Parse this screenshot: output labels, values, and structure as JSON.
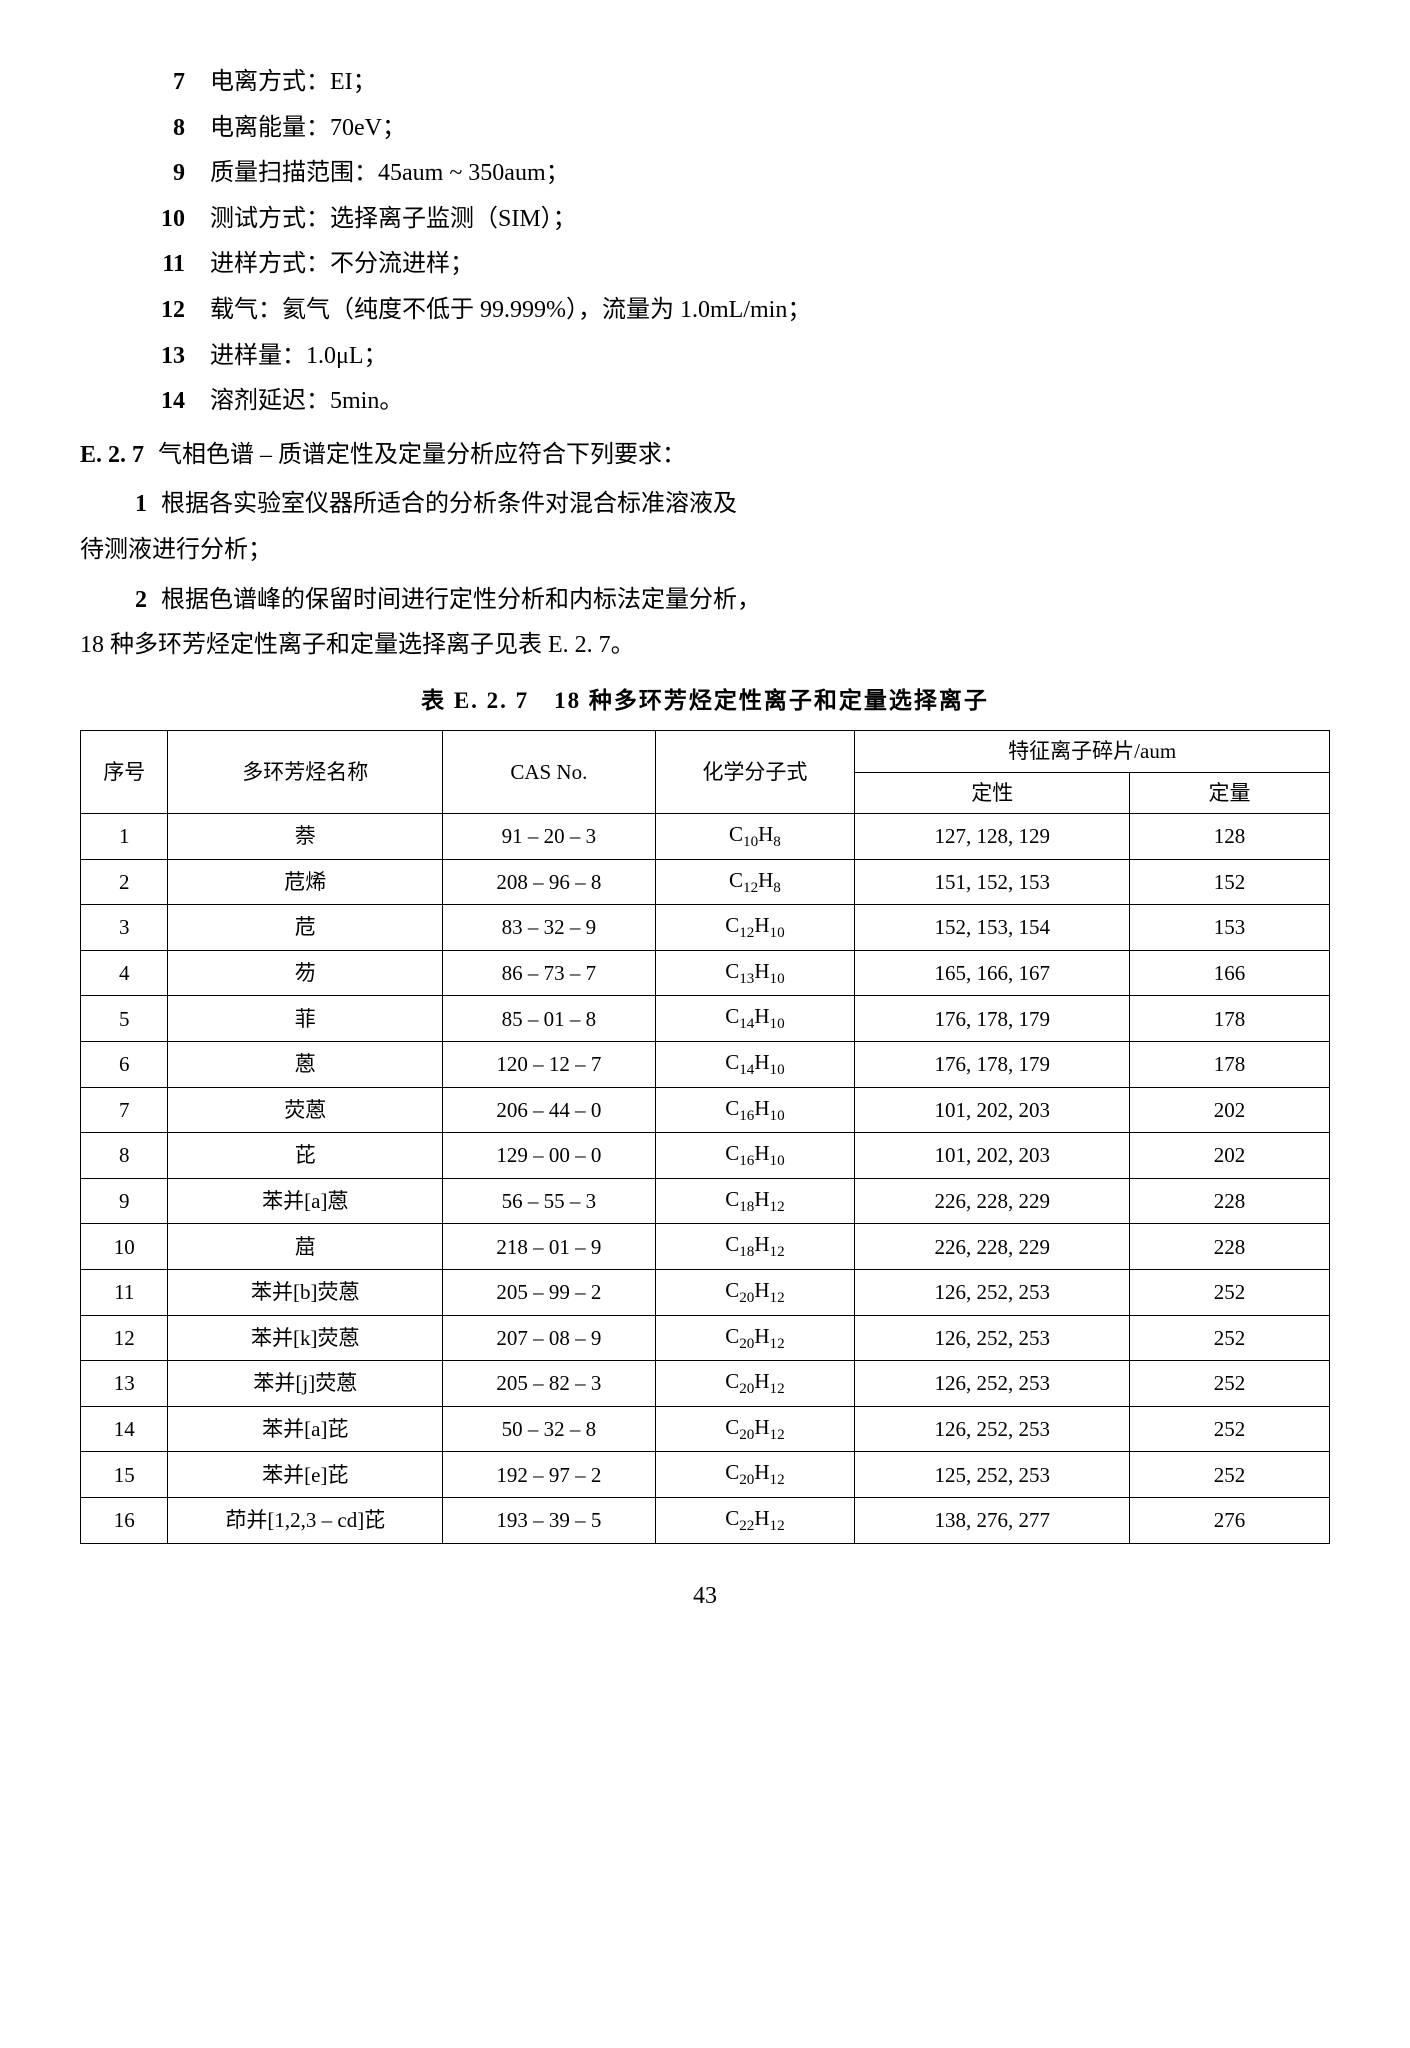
{
  "background_color": "#ffffff",
  "text_color": "#000000",
  "border_color": "#000000",
  "base_fontsize": 24,
  "list": {
    "items": [
      {
        "num": "7",
        "text": "电离方式：EI；"
      },
      {
        "num": "8",
        "text": "电离能量：70eV；"
      },
      {
        "num": "9",
        "text": "质量扫描范围：45aum ~ 350aum；"
      },
      {
        "num": "10",
        "text": "测试方式：选择离子监测（SIM）；"
      },
      {
        "num": "11",
        "text": "进样方式：不分流进样；"
      },
      {
        "num": "12",
        "text": "载气：氦气（纯度不低于 99.999%），流量为 1.0mL/min；"
      },
      {
        "num": "13",
        "text": "进样量：1.0μL；"
      },
      {
        "num": "14",
        "text": "溶剂延迟：5min。"
      }
    ]
  },
  "section": {
    "num": "E. 2. 7",
    "text": "气相色谱 – 质谱定性及定量分析应符合下列要求："
  },
  "paras": [
    {
      "num": "1",
      "first": "根据各实验室仪器所适合的分析条件对混合标准溶液及",
      "cont": "待测液进行分析；"
    },
    {
      "num": "2",
      "first": "根据色谱峰的保留时间进行定性分析和内标法定量分析，",
      "cont": "18 种多环芳烃定性离子和定量选择离子见表 E. 2. 7。"
    }
  ],
  "table": {
    "caption": "表 E. 2. 7　18 种多环芳烃定性离子和定量选择离子",
    "columns": {
      "seq": "序号",
      "name": "多环芳烃名称",
      "cas": "CAS No.",
      "formula": "化学分子式",
      "ion_group": "特征离子碎片/aum",
      "qual": "定性",
      "quant": "定量"
    },
    "col_widths": {
      "seq": "7%",
      "name": "22%",
      "cas": "17%",
      "formula": "16%",
      "qual": "22%",
      "quant": "16%"
    },
    "fontsize": 21,
    "rows": [
      {
        "seq": "1",
        "name": "萘",
        "cas": "91 – 20 – 3",
        "formula": "C<sub>10</sub>H<sub>8</sub>",
        "qual": "127, 128, 129",
        "quant": "128"
      },
      {
        "seq": "2",
        "name": "苊烯",
        "cas": "208 – 96 – 8",
        "formula": "C<sub>12</sub>H<sub>8</sub>",
        "qual": "151, 152, 153",
        "quant": "152"
      },
      {
        "seq": "3",
        "name": "苊",
        "cas": "83 – 32 – 9",
        "formula": "C<sub>12</sub>H<sub>10</sub>",
        "qual": "152, 153, 154",
        "quant": "153"
      },
      {
        "seq": "4",
        "name": "芴",
        "cas": "86 – 73 – 7",
        "formula": "C<sub>13</sub>H<sub>10</sub>",
        "qual": "165, 166, 167",
        "quant": "166"
      },
      {
        "seq": "5",
        "name": "菲",
        "cas": "85 – 01 – 8",
        "formula": "C<sub>14</sub>H<sub>10</sub>",
        "qual": "176, 178, 179",
        "quant": "178"
      },
      {
        "seq": "6",
        "name": "蒽",
        "cas": "120 – 12 – 7",
        "formula": "C<sub>14</sub>H<sub>10</sub>",
        "qual": "176, 178, 179",
        "quant": "178"
      },
      {
        "seq": "7",
        "name": "荧蒽",
        "cas": "206 – 44 – 0",
        "formula": "C<sub>16</sub>H<sub>10</sub>",
        "qual": "101, 202, 203",
        "quant": "202"
      },
      {
        "seq": "8",
        "name": "芘",
        "cas": "129 – 00 – 0",
        "formula": "C<sub>16</sub>H<sub>10</sub>",
        "qual": "101, 202, 203",
        "quant": "202"
      },
      {
        "seq": "9",
        "name": "苯并[a]蒽",
        "cas": "56 – 55 – 3",
        "formula": "C<sub>18</sub>H<sub>12</sub>",
        "qual": "226, 228, 229",
        "quant": "228"
      },
      {
        "seq": "10",
        "name": "䓛",
        "cas": "218 – 01 – 9",
        "formula": "C<sub>18</sub>H<sub>12</sub>",
        "qual": "226, 228, 229",
        "quant": "228"
      },
      {
        "seq": "11",
        "name": "苯并[b]荧蒽",
        "cas": "205 – 99 – 2",
        "formula": "C<sub>20</sub>H<sub>12</sub>",
        "qual": "126, 252, 253",
        "quant": "252"
      },
      {
        "seq": "12",
        "name": "苯并[k]荧蒽",
        "cas": "207 – 08 – 9",
        "formula": "C<sub>20</sub>H<sub>12</sub>",
        "qual": "126, 252, 253",
        "quant": "252"
      },
      {
        "seq": "13",
        "name": "苯并[j]荧蒽",
        "cas": "205 – 82 – 3",
        "formula": "C<sub>20</sub>H<sub>12</sub>",
        "qual": "126, 252, 253",
        "quant": "252"
      },
      {
        "seq": "14",
        "name": "苯并[a]芘",
        "cas": "50 – 32 – 8",
        "formula": "C<sub>20</sub>H<sub>12</sub>",
        "qual": "126, 252, 253",
        "quant": "252"
      },
      {
        "seq": "15",
        "name": "苯并[e]芘",
        "cas": "192 – 97 – 2",
        "formula": "C<sub>20</sub>H<sub>12</sub>",
        "qual": "125, 252, 253",
        "quant": "252"
      },
      {
        "seq": "16",
        "name": "茚并[1,2,3 – cd]芘",
        "cas": "193 – 39 – 5",
        "formula": "C<sub>22</sub>H<sub>12</sub>",
        "qual": "138, 276, 277",
        "quant": "276"
      }
    ]
  },
  "page_number": "43"
}
